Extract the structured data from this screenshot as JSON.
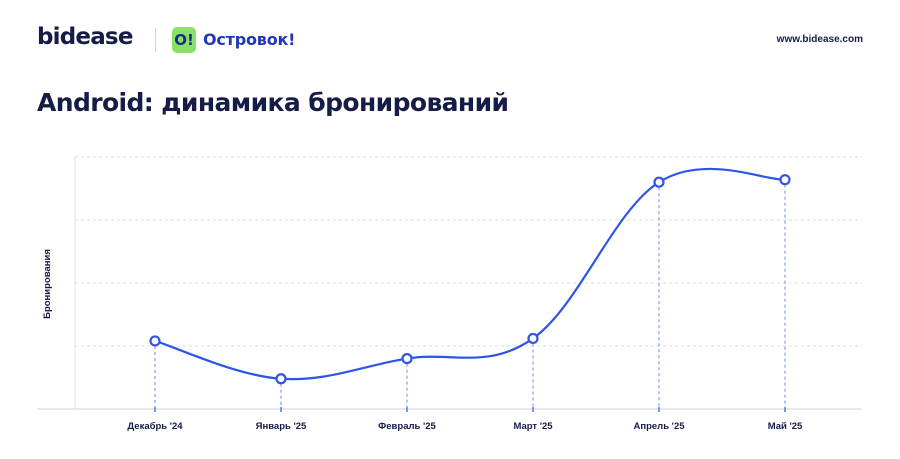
{
  "header": {
    "brand": "bidease",
    "partner_badge": "O!",
    "partner_name": "Островок!",
    "url": "www.bidease.com"
  },
  "colors": {
    "line": "#2f55e6",
    "badge": "#8be06a",
    "text": "#151c46",
    "grid": "#d9dce4"
  },
  "chart_data": {
    "type": "line",
    "title": "Android: динамика бронирований",
    "xlabel": "",
    "ylabel": "Бронирования",
    "categories": [
      "Декабрь '24",
      "Январь '25",
      "Февраль '25",
      "Март '25",
      "Апрель '25",
      "Май '25"
    ],
    "series": [
      {
        "values": [
          0.27,
          0.12,
          0.2,
          0.28,
          0.9,
          0.91
        ]
      }
    ],
    "ylim": [
      0,
      1
    ],
    "grid": true,
    "y_tick_labels": false
  }
}
